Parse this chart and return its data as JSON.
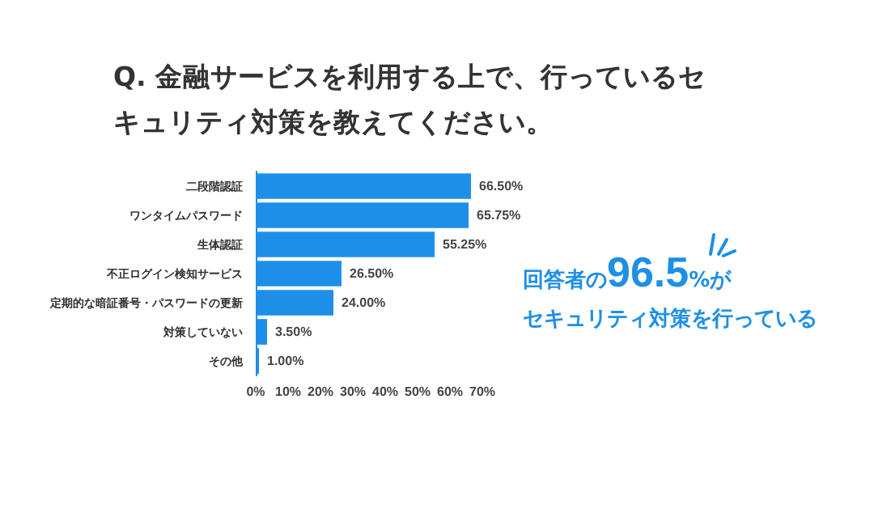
{
  "chart_data": {
    "type": "bar",
    "orientation": "horizontal",
    "title": "Q. 金融サービスを利用する上で、行っているセキュリティ対策を教えてください。",
    "categories": [
      "二段階認証",
      "ワンタイムパスワード",
      "生体認証",
      "不正ログイン検知サービス",
      "定期的な暗証番号・パスワードの更新",
      "対策していない",
      "その他"
    ],
    "values": [
      66.5,
      65.75,
      55.25,
      26.5,
      24.0,
      3.5,
      1.0
    ],
    "value_labels": [
      "66.50%",
      "65.75%",
      "55.25%",
      "26.50%",
      "24.00%",
      "3.50%",
      "1.00%"
    ],
    "color": "#1e8fe8",
    "xlim": [
      0,
      70
    ],
    "xticks": [
      {
        "value": 0,
        "label": "0%"
      },
      {
        "value": 10,
        "label": "10%"
      },
      {
        "value": 20,
        "label": "20%"
      },
      {
        "value": 30,
        "label": "30%"
      },
      {
        "value": 40,
        "label": "40%"
      },
      {
        "value": 50,
        "label": "50%"
      },
      {
        "value": 60,
        "label": "60%"
      },
      {
        "value": 70,
        "label": "70%"
      }
    ],
    "grid": false,
    "annotations": [
      "回答者の96.5%が",
      "セキュリティ対策を行っている"
    ]
  }
}
